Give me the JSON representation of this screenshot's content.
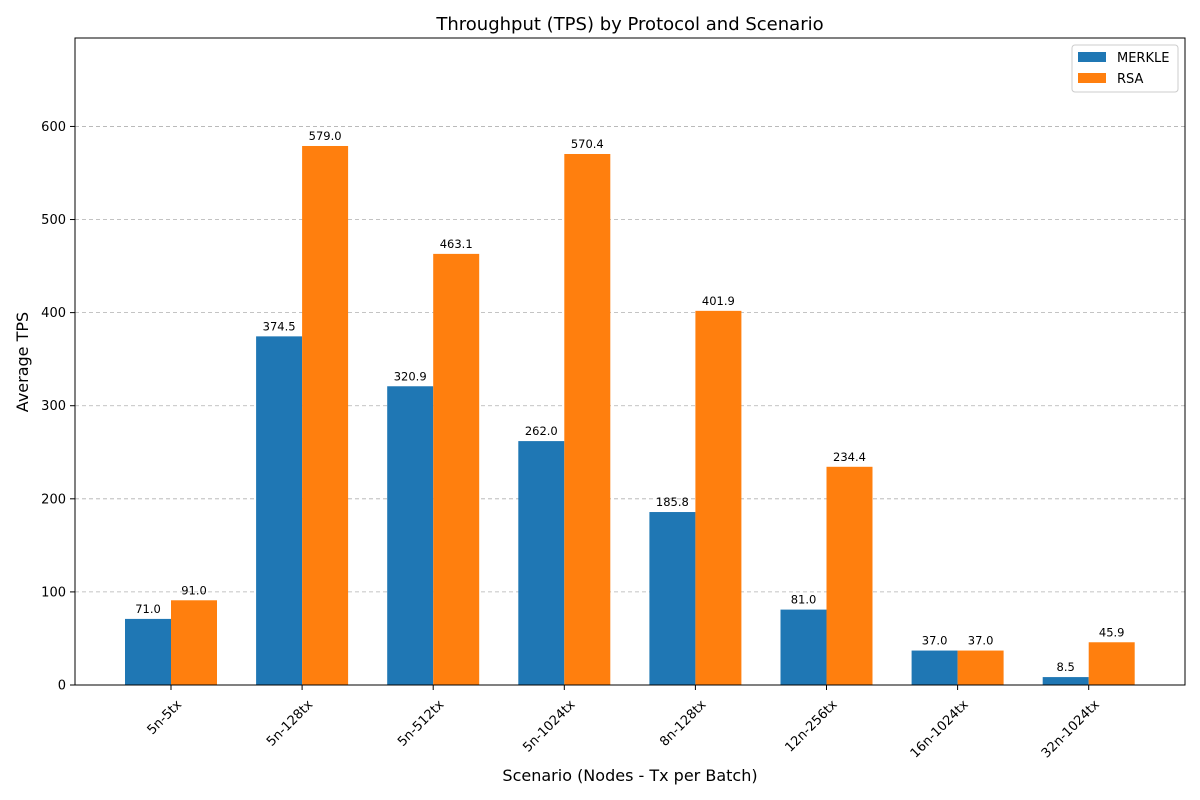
{
  "chart_data": {
    "type": "bar",
    "title": "Throughput (TPS) by Protocol and Scenario",
    "xlabel": "Scenario (Nodes - Tx per Batch)",
    "ylabel": "Average TPS",
    "categories": [
      "5n-5tx",
      "5n-128tx",
      "5n-512tx",
      "5n-1024tx",
      "8n-128tx",
      "12n-256tx",
      "16n-1024tx",
      "32n-1024tx"
    ],
    "series": [
      {
        "name": "MERKLE",
        "color": "#1f77b4",
        "values": [
          71.0,
          374.5,
          320.9,
          262.0,
          185.8,
          81.0,
          37.0,
          8.5
        ],
        "labels": [
          "71.0",
          "374.5",
          "320.9",
          "262.0",
          "185.8",
          "81.0",
          "37.0",
          "8.5"
        ]
      },
      {
        "name": "RSA",
        "color": "#ff7f0e",
        "values": [
          91.0,
          579.0,
          463.1,
          570.4,
          401.9,
          234.4,
          37.0,
          45.9
        ],
        "labels": [
          "91.0",
          "579.0",
          "463.1",
          "570.4",
          "401.9",
          "234.4",
          "37.0",
          "45.9"
        ]
      }
    ],
    "ylim": [
      0,
      695
    ],
    "yticks": [
      0,
      100,
      200,
      300,
      400,
      500,
      600
    ],
    "ytick_labels": [
      "0",
      "100",
      "200",
      "300",
      "400",
      "500",
      "600"
    ],
    "grid": "y-dashed",
    "legend_position": "top-right",
    "xtick_rotation": -45
  }
}
